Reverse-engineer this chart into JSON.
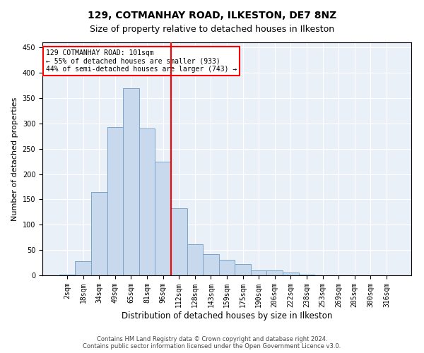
{
  "title": "129, COTMANHAY ROAD, ILKESTON, DE7 8NZ",
  "subtitle": "Size of property relative to detached houses in Ilkeston",
  "xlabel": "Distribution of detached houses by size in Ilkeston",
  "ylabel": "Number of detached properties",
  "categories": [
    "2sqm",
    "18sqm",
    "34sqm",
    "49sqm",
    "65sqm",
    "81sqm",
    "96sqm",
    "112sqm",
    "128sqm",
    "143sqm",
    "159sqm",
    "175sqm",
    "190sqm",
    "206sqm",
    "222sqm",
    "238sqm",
    "253sqm",
    "269sqm",
    "285sqm",
    "300sqm",
    "316sqm"
  ],
  "values": [
    2,
    28,
    165,
    293,
    370,
    290,
    225,
    133,
    62,
    42,
    30,
    22,
    10,
    10,
    5,
    2,
    0,
    0,
    0,
    0,
    0
  ],
  "bar_color": "#c9d9ed",
  "bar_edge_color": "#7aa4c8",
  "vline_color": "red",
  "annotation_text": "129 COTMANHAY ROAD: 101sqm\n← 55% of detached houses are smaller (933)\n44% of semi-detached houses are larger (743) →",
  "annotation_box_color": "white",
  "annotation_box_edge_color": "red",
  "ylim": [
    0,
    460
  ],
  "yticks": [
    0,
    50,
    100,
    150,
    200,
    250,
    300,
    350,
    400,
    450
  ],
  "background_color": "#eaf0f8",
  "footer": "Contains HM Land Registry data © Crown copyright and database right 2024.\nContains public sector information licensed under the Open Government Licence v3.0.",
  "title_fontsize": 10,
  "subtitle_fontsize": 9,
  "xlabel_fontsize": 8.5,
  "ylabel_fontsize": 8,
  "tick_fontsize": 7,
  "annotation_fontsize": 7,
  "footer_fontsize": 6
}
